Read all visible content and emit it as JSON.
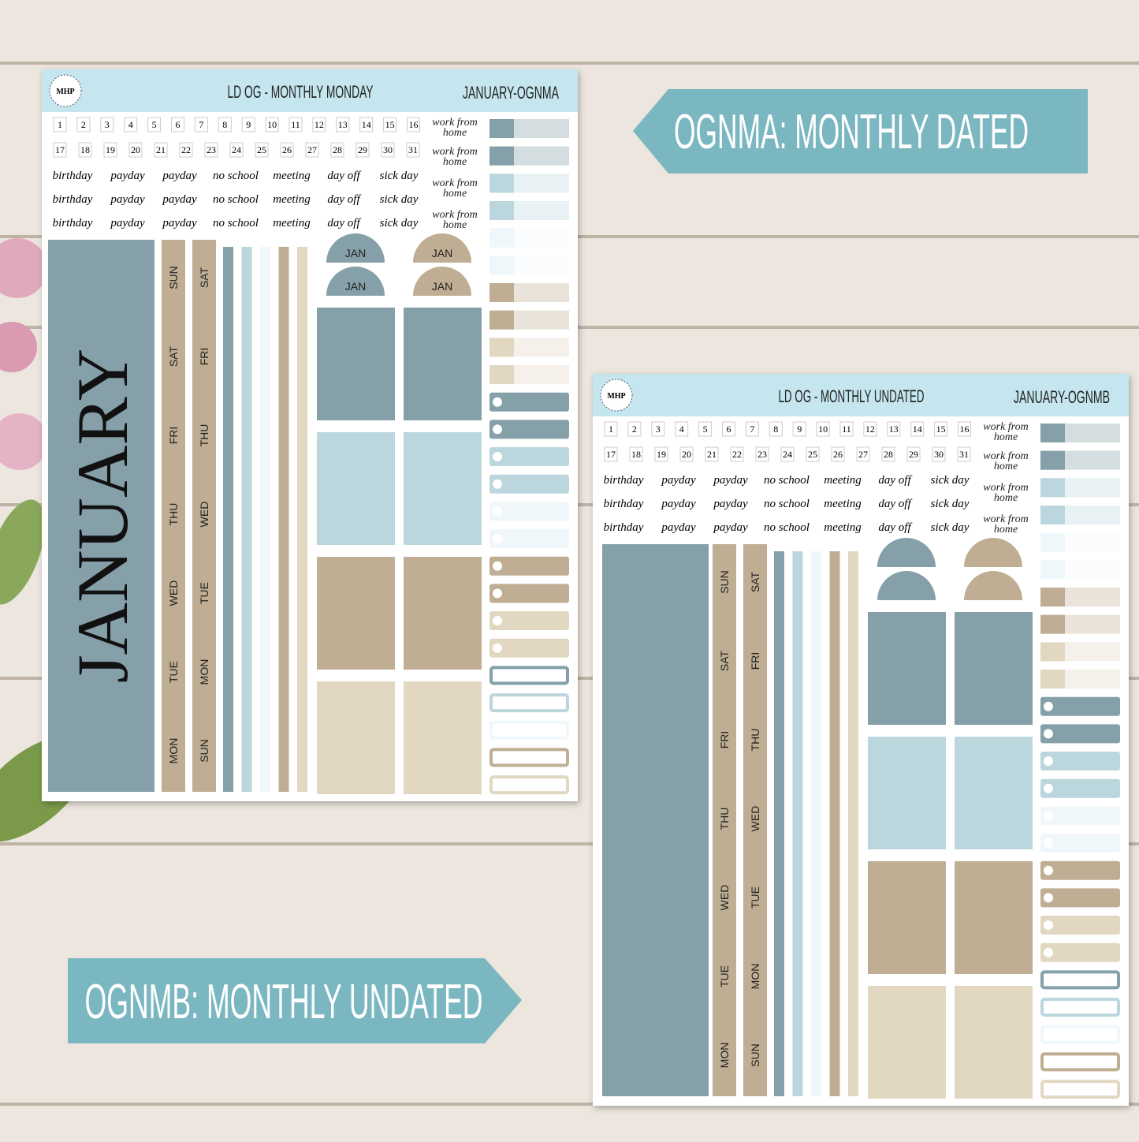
{
  "banners": [
    "OGNMA: MONTHLY DATED",
    "OGNMB: MONTHLY UNDATED"
  ],
  "sheets": [
    {
      "logo": "MHP",
      "title": "LD OG - MONTHLY MONDAY",
      "code": "JANUARY-OGNMA",
      "numbers": [
        1,
        2,
        3,
        4,
        5,
        6,
        7,
        8,
        9,
        10,
        11,
        12,
        13,
        14,
        15,
        16,
        17,
        18,
        19,
        20,
        21,
        22,
        23,
        24,
        25,
        26,
        27,
        28,
        29,
        30,
        31
      ],
      "word_rows": [
        [
          "birthday",
          "payday",
          "payday",
          "no school",
          "meeting",
          "day off",
          "sick day"
        ],
        [
          "birthday",
          "payday",
          "payday",
          "no school",
          "meeting",
          "day off",
          "sick day"
        ],
        [
          "birthday",
          "payday",
          "payday",
          "no school",
          "meeting",
          "day off",
          "sick day"
        ]
      ],
      "wfh": [
        "work from home",
        "work from home",
        "work from home",
        "work from home"
      ],
      "month_label": "JANUARY",
      "tab_labels": [
        "JAN",
        "JAN",
        "JAN",
        "JAN"
      ],
      "days_a": [
        "SUN",
        "SAT",
        "FRI",
        "THU",
        "WED",
        "TUE",
        "MON"
      ],
      "days_b": [
        "SAT",
        "FRI",
        "THU",
        "WED",
        "TUE",
        "MON",
        "SUN"
      ]
    },
    {
      "logo": "MHP",
      "title": "LD OG - MONTHLY UNDATED",
      "code": "JANUARY-OGNMB",
      "numbers": [
        1,
        2,
        3,
        4,
        5,
        6,
        7,
        8,
        9,
        10,
        11,
        12,
        13,
        14,
        15,
        16,
        17,
        18,
        19,
        20,
        21,
        22,
        23,
        24,
        25,
        26,
        27,
        28,
        29,
        30,
        31
      ],
      "word_rows": [
        [
          "birthday",
          "payday",
          "payday",
          "no school",
          "meeting",
          "day off",
          "sick day"
        ],
        [
          "birthday",
          "payday",
          "payday",
          "no school",
          "meeting",
          "day off",
          "sick day"
        ],
        [
          "birthday",
          "payday",
          "payday",
          "no school",
          "meeting",
          "day off",
          "sick day"
        ]
      ],
      "wfh": [
        "work from home",
        "work from home",
        "work from home",
        "work from home"
      ],
      "days_a": [
        "SUN",
        "SAT",
        "FRI",
        "THU",
        "WED",
        "TUE",
        "MON"
      ],
      "days_b": [
        "SAT",
        "FRI",
        "THU",
        "WED",
        "TUE",
        "MON",
        "SUN"
      ]
    }
  ]
}
